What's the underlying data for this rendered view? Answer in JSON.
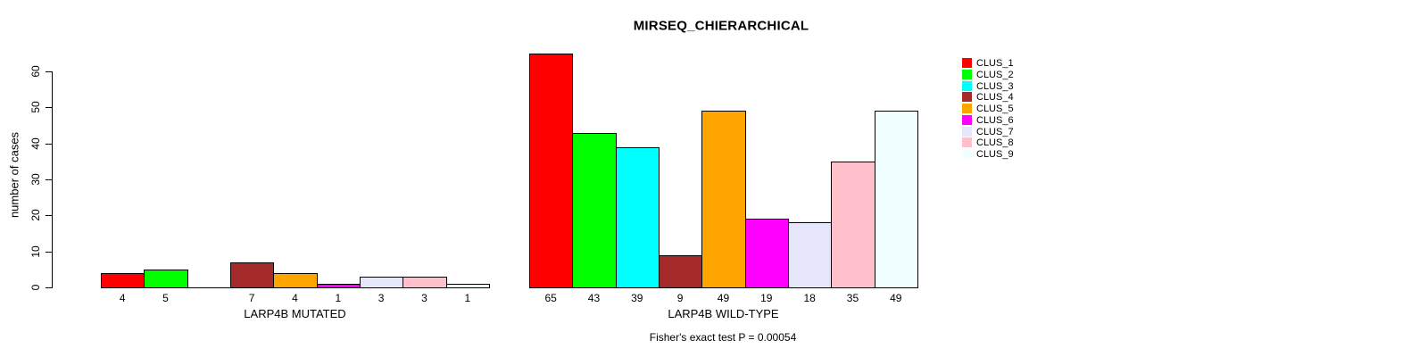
{
  "title": "MIRSEQ_CHIERARCHICAL",
  "subtitle": "Fisher's exact test P = 0.00054",
  "y_axis": {
    "label": "number of cases",
    "tick_labels": [
      "0",
      "10",
      "20",
      "30",
      "40",
      "50",
      "60"
    ]
  },
  "legend": {
    "entries": [
      {
        "label": "CLUS_1",
        "color": "#FF0000"
      },
      {
        "label": "CLUS_2",
        "color": "#00FF00"
      },
      {
        "label": "CLUS_3",
        "color": "#00FFFF"
      },
      {
        "label": "CLUS_4",
        "color": "#A52A2A"
      },
      {
        "label": "CLUS_5",
        "color": "#FFA500"
      },
      {
        "label": "CLUS_6",
        "color": "#FF00FF"
      },
      {
        "label": "CLUS_7",
        "color": "#E6E6FA"
      },
      {
        "label": "CLUS_8",
        "color": "#FFC0CB"
      },
      {
        "label": "CLUS_9",
        "color": "#F0FFFF"
      }
    ]
  },
  "chart_data": {
    "type": "bar",
    "title": "MIRSEQ_CHIERARCHICAL",
    "ylabel": "number of cases",
    "ylim": [
      0,
      65
    ],
    "yticks": [
      0,
      10,
      20,
      30,
      40,
      50,
      60
    ],
    "grid": false,
    "legend_position": "right-outside",
    "categories": [
      "CLUS_1",
      "CLUS_2",
      "CLUS_3",
      "CLUS_4",
      "CLUS_5",
      "CLUS_6",
      "CLUS_7",
      "CLUS_8",
      "CLUS_9"
    ],
    "colors": [
      "#FF0000",
      "#00FF00",
      "#00FFFF",
      "#A52A2A",
      "#FFA500",
      "#FF00FF",
      "#E6E6FA",
      "#FFC0CB",
      "#F0FFFF"
    ],
    "bar_border_color": "#000000",
    "groups": [
      {
        "label": "LARP4B MUTATED",
        "values": [
          4,
          5,
          0,
          7,
          4,
          1,
          3,
          3,
          1
        ]
      },
      {
        "label": "LARP4B WILD-TYPE",
        "values": [
          65,
          43,
          39,
          9,
          49,
          19,
          18,
          35,
          49
        ]
      }
    ],
    "annotation": "Fisher's exact test P = 0.00054",
    "note": "zero-value bars drawn as flat line with no numeric label"
  }
}
